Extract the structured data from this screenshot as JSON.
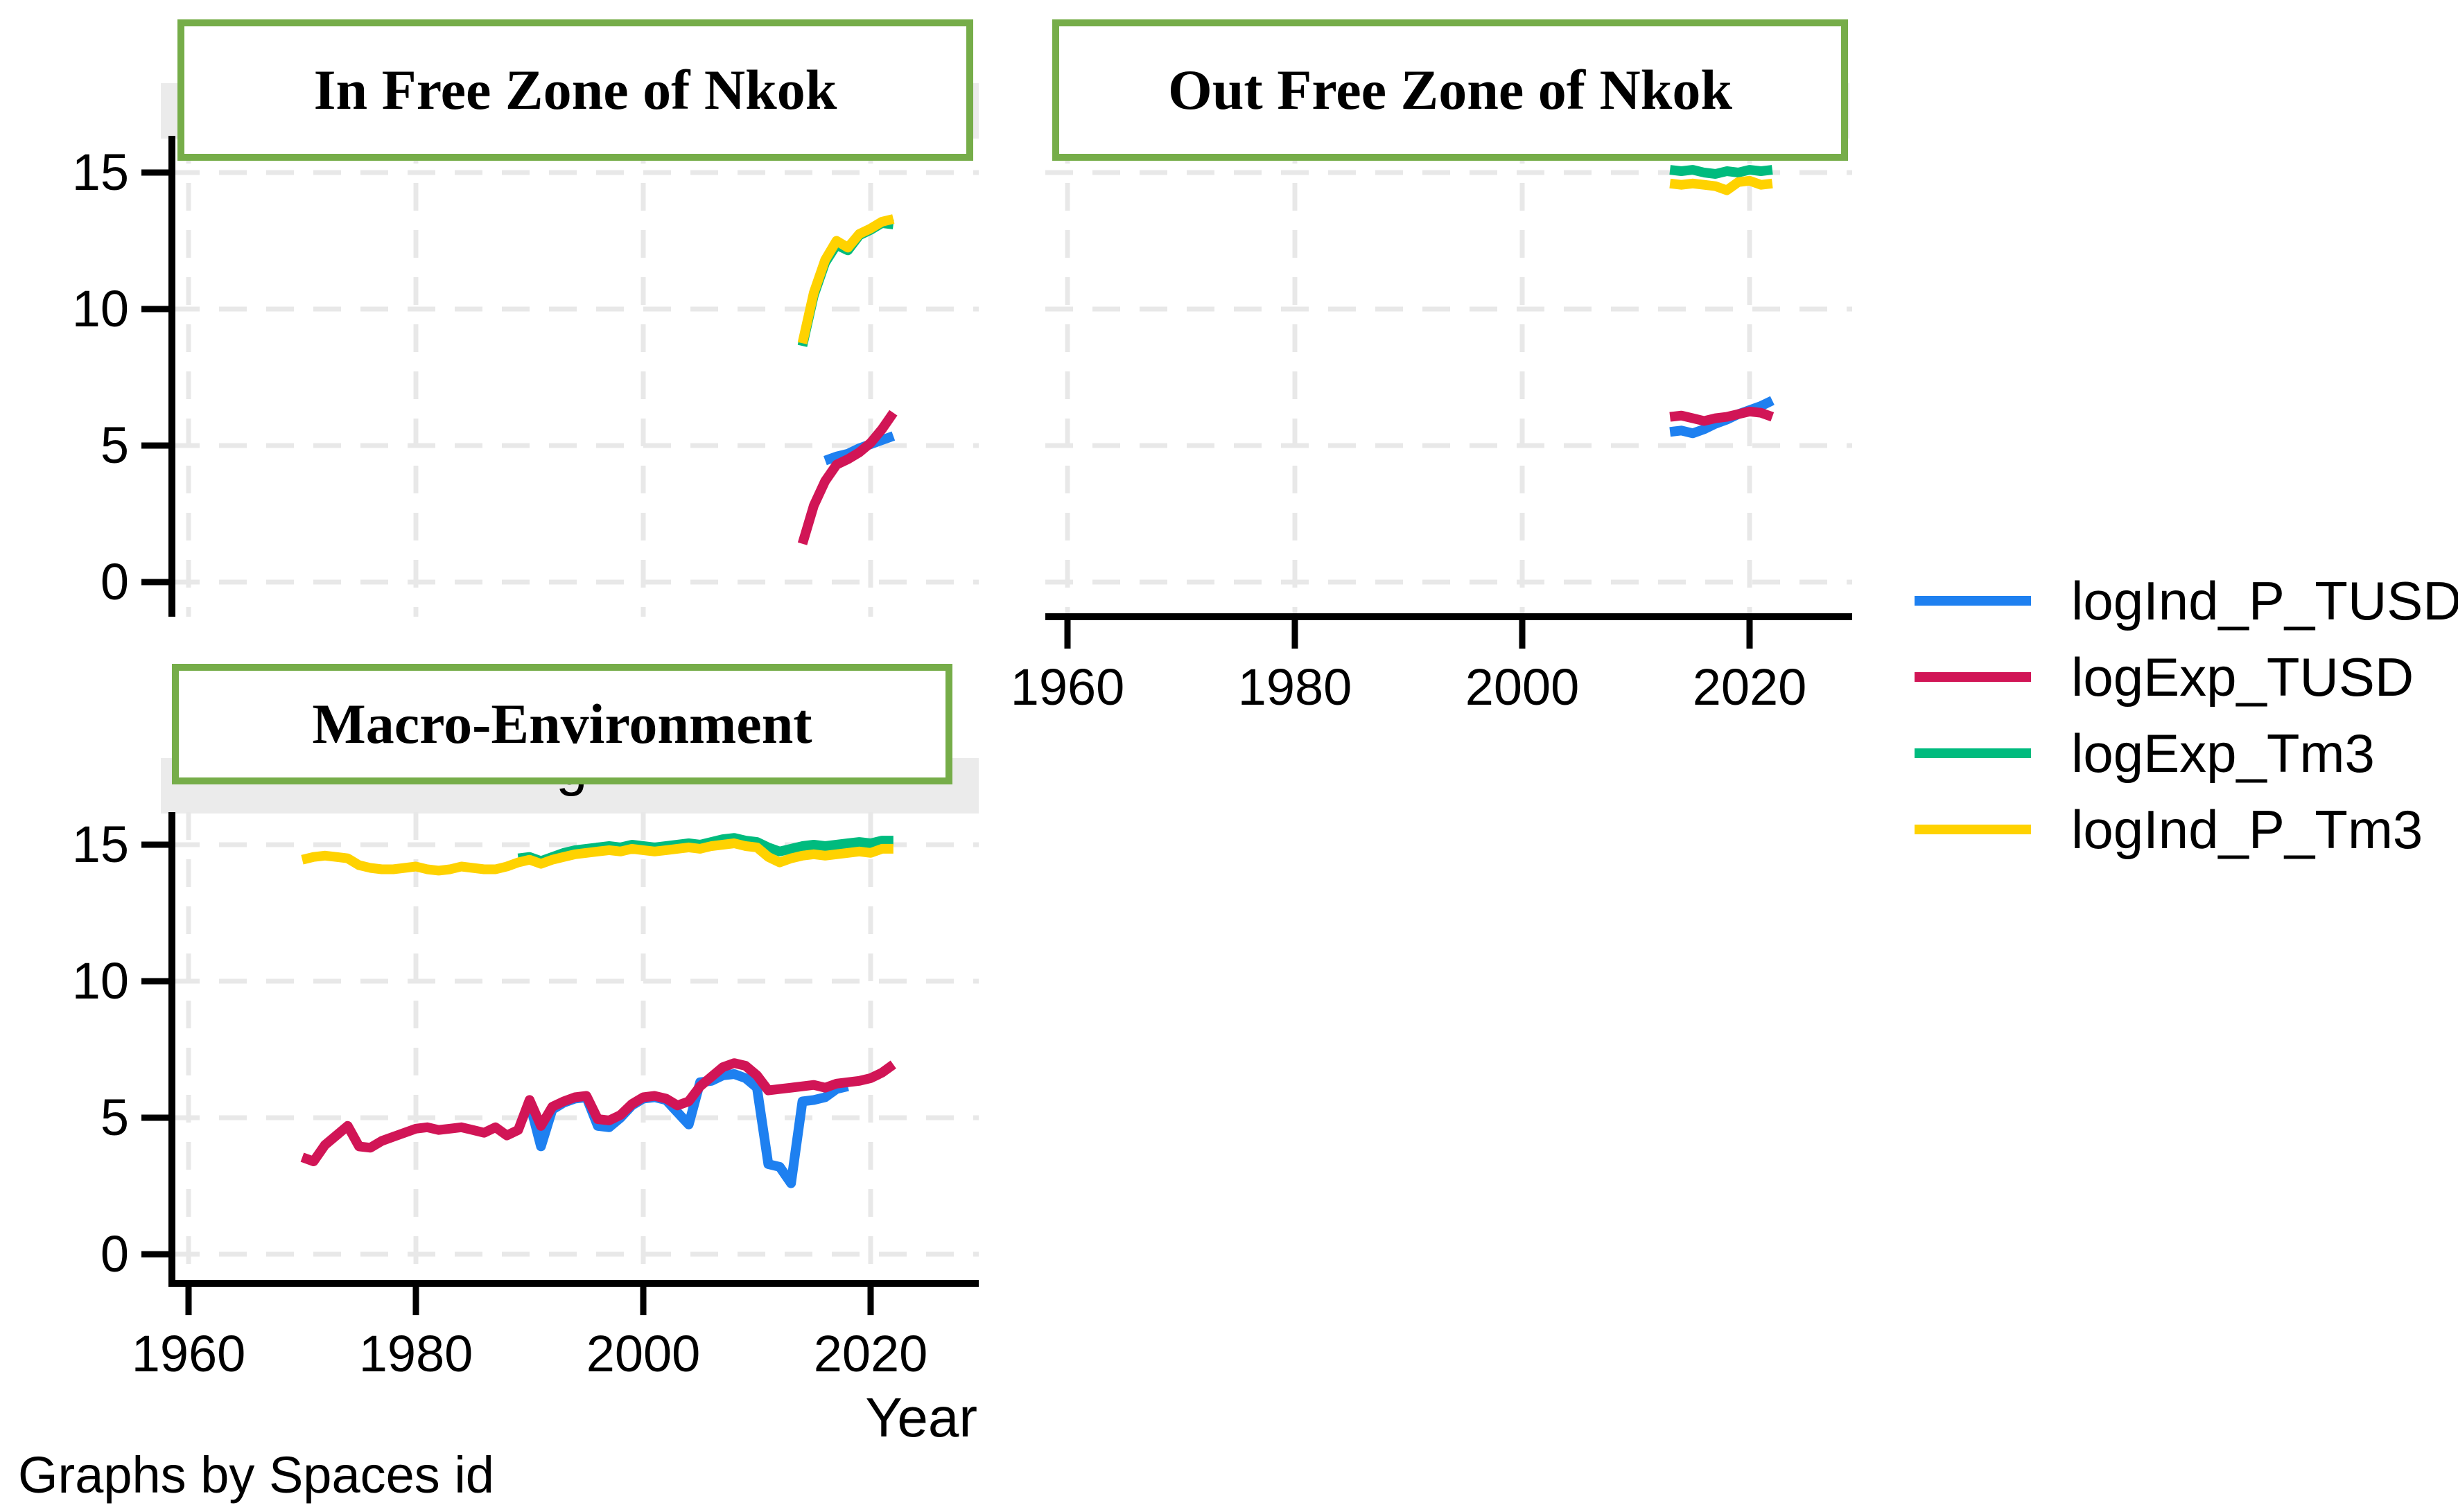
{
  "app": {
    "note": "Graphs by Spaces id"
  },
  "colors": {
    "blue": "#1e80f0",
    "crimson": "#d11556",
    "green": "#00bb7e",
    "yellow": "#ffd200",
    "box_border": "#76ad49",
    "strip_gray": "#ebebeb",
    "gridline": "#e8e8e8",
    "axis": "#000000"
  },
  "legend": {
    "entries": [
      {
        "label": "logInd_P_TUSD",
        "color": "#1e80f0"
      },
      {
        "label": "logExp_TUSD",
        "color": "#d11556"
      },
      {
        "label": "logExp_Tm3",
        "color": "#00bb7e"
      },
      {
        "label": "logInd_P_Tm3",
        "color": "#ffd200"
      }
    ]
  },
  "chart_data": [
    {
      "id": "in-free-zone",
      "type": "line",
      "title": "In Free Zone of Nkok",
      "x_ticks": [
        1960,
        1980,
        2000,
        2020
      ],
      "y_ticks": [
        0,
        5,
        10,
        15
      ],
      "ylim": [
        0,
        15
      ],
      "xlim": [
        1956,
        2029
      ],
      "grid": "dashed",
      "series": [
        {
          "name": "logInd_P_TUSD",
          "color": "#1e80f0",
          "x_start": 2016,
          "x_step": 1,
          "values": [
            4.45,
            4.6,
            4.7,
            4.9,
            5.05,
            5.2,
            5.35
          ]
        },
        {
          "name": "logExp_TUSD",
          "color": "#d11556",
          "x_start": 2014,
          "x_step": 1,
          "values": [
            1.4,
            2.8,
            3.7,
            4.3,
            4.5,
            4.75,
            5.1,
            5.6,
            6.2
          ]
        },
        {
          "name": "logExp_Tm3",
          "color": "#00bb7e",
          "x_start": 2014,
          "x_step": 1,
          "values": [
            8.65,
            10.5,
            11.7,
            12.35,
            12.15,
            12.7,
            12.9,
            13.15,
            13.1
          ]
        },
        {
          "name": "logInd_P_Tm3",
          "color": "#ffd200",
          "x_start": 2014,
          "x_step": 1,
          "values": [
            8.75,
            10.6,
            11.8,
            12.5,
            12.25,
            12.75,
            12.95,
            13.2,
            13.3
          ]
        }
      ]
    },
    {
      "id": "out-free-zone",
      "type": "line",
      "title": "Out Free Zone of Nkok",
      "x_ticks": [
        1960,
        1980,
        2000,
        2020
      ],
      "y_ticks": [
        0,
        5,
        10,
        15
      ],
      "ylim": [
        0,
        15
      ],
      "xlim": [
        1956,
        2029
      ],
      "grid": "dashed",
      "series": [
        {
          "name": "logInd_P_TUSD",
          "color": "#1e80f0",
          "x_start": 2013,
          "x_step": 1,
          "values": [
            5.5,
            5.55,
            5.45,
            5.6,
            5.8,
            5.95,
            6.15,
            6.3,
            6.45,
            6.65
          ]
        },
        {
          "name": "logExp_TUSD",
          "color": "#d11556",
          "x_start": 2013,
          "x_step": 1,
          "values": [
            6.05,
            6.1,
            6.0,
            5.9,
            6.0,
            6.05,
            6.15,
            6.25,
            6.2,
            6.05
          ]
        },
        {
          "name": "logExp_Tm3",
          "color": "#00bb7e",
          "x_start": 2013,
          "x_step": 1,
          "values": [
            15.1,
            15.05,
            15.1,
            15.0,
            14.95,
            15.05,
            15.0,
            15.1,
            15.05,
            15.1
          ]
        },
        {
          "name": "logInd_P_Tm3",
          "color": "#ffd200",
          "x_start": 2013,
          "x_step": 1,
          "values": [
            14.6,
            14.55,
            14.6,
            14.55,
            14.5,
            14.35,
            14.65,
            14.7,
            14.55,
            14.6
          ]
        }
      ]
    },
    {
      "id": "macro-environment",
      "type": "line",
      "title": "Macro-Environment",
      "hidden_subtitle_fragment": "g",
      "xlabel": "Year",
      "x_ticks": [
        1960,
        1980,
        2000,
        2020
      ],
      "y_ticks": [
        0,
        5,
        10,
        15
      ],
      "ylim": [
        0,
        15
      ],
      "xlim": [
        1956,
        2029
      ],
      "grid": "dashed",
      "series": [
        {
          "name": "logInd_P_TUSD",
          "color": "#1e80f0",
          "x_start": 1990,
          "x_step": 1,
          "values": [
            5.55,
            3.95,
            5.3,
            5.55,
            5.7,
            5.75,
            4.7,
            4.65,
            5.0,
            5.45,
            5.7,
            5.75,
            5.65,
            5.2,
            4.75,
            6.3,
            6.35,
            6.55,
            6.6,
            6.45,
            6.1,
            3.3,
            3.2,
            2.6,
            5.6,
            5.65,
            5.75,
            6.05,
            6.15
          ]
        },
        {
          "name": "logExp_TUSD",
          "color": "#d11556",
          "x_start": 1970,
          "x_step": 1,
          "values": [
            3.55,
            3.4,
            4.0,
            4.35,
            4.7,
            3.95,
            3.9,
            4.15,
            4.3,
            4.45,
            4.6,
            4.65,
            4.55,
            4.6,
            4.65,
            4.55,
            4.45,
            4.65,
            4.35,
            4.55,
            5.65,
            4.7,
            5.4,
            5.6,
            5.75,
            5.8,
            4.95,
            4.9,
            5.1,
            5.5,
            5.75,
            5.8,
            5.7,
            5.45,
            5.6,
            6.15,
            6.5,
            6.85,
            7.0,
            6.9,
            6.55,
            6.0,
            6.05,
            6.1,
            6.15,
            6.2,
            6.1,
            6.25,
            6.3,
            6.35,
            6.45,
            6.65,
            6.95
          ]
        },
        {
          "name": "logExp_Tm3",
          "color": "#00bb7e",
          "x_start": 1989,
          "x_step": 1,
          "values": [
            14.5,
            14.55,
            14.4,
            14.55,
            14.7,
            14.8,
            14.85,
            14.9,
            14.95,
            14.9,
            15.0,
            14.95,
            14.9,
            14.95,
            15.0,
            15.05,
            15.0,
            15.1,
            15.2,
            15.25,
            15.15,
            15.1,
            14.9,
            14.75,
            14.85,
            14.95,
            15.0,
            14.95,
            15.0,
            15.05,
            15.1,
            15.05,
            15.15,
            15.15
          ]
        },
        {
          "name": "logInd_P_Tm3",
          "color": "#ffd200",
          "x_start": 1970,
          "x_step": 1,
          "values": [
            14.45,
            14.55,
            14.6,
            14.55,
            14.5,
            14.25,
            14.15,
            14.1,
            14.1,
            14.15,
            14.2,
            14.1,
            14.05,
            14.1,
            14.2,
            14.15,
            14.1,
            14.1,
            14.2,
            14.35,
            14.45,
            14.3,
            14.45,
            14.55,
            14.65,
            14.7,
            14.75,
            14.8,
            14.75,
            14.85,
            14.8,
            14.75,
            14.8,
            14.85,
            14.9,
            14.85,
            14.95,
            15.0,
            15.05,
            14.95,
            14.9,
            14.55,
            14.35,
            14.5,
            14.6,
            14.65,
            14.6,
            14.65,
            14.7,
            14.75,
            14.7,
            14.85,
            14.85
          ]
        }
      ]
    }
  ]
}
